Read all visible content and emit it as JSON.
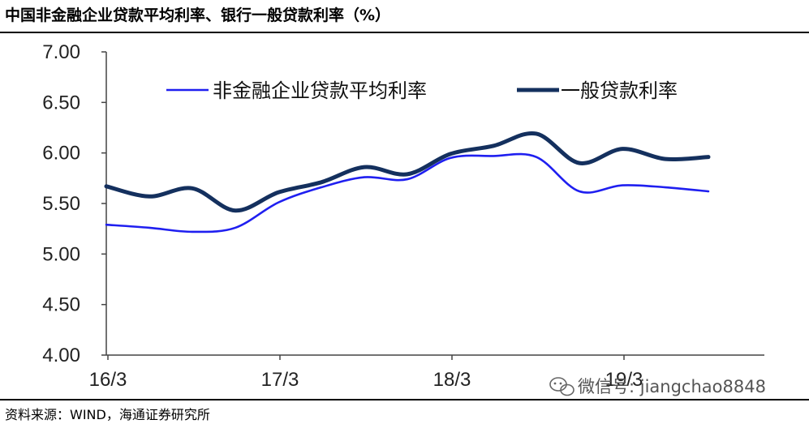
{
  "title": "中国非金融企业贷款平均利率、银行一般贷款利率（%）",
  "source": "资料来源：WIND，海通证券研究所",
  "watermark": "微信号: jiangchao8848",
  "colors": {
    "series_1": "#1f1ff0",
    "series_2": "#14305e",
    "axis": "#444444"
  },
  "chart_data": {
    "type": "line",
    "title": "中国非金融企业贷款平均利率、银行一般贷款利率（%）",
    "xlabel": "",
    "ylabel": "",
    "ylim": [
      4.0,
      7.0
    ],
    "yticks": [
      "7.00",
      "6.50",
      "6.00",
      "5.50",
      "5.00",
      "4.50",
      "4.00"
    ],
    "xticks": [
      "16/3",
      "17/3",
      "18/3",
      "19/3"
    ],
    "x": [
      "16/3",
      "16/6",
      "16/9",
      "16/12",
      "17/3",
      "17/6",
      "17/9",
      "17/12",
      "18/3",
      "18/6",
      "18/9",
      "18/12",
      "19/3",
      "19/6",
      "19/9"
    ],
    "series": [
      {
        "name": "非金融企业贷款平均利率",
        "values": [
          5.29,
          5.26,
          5.22,
          5.26,
          5.51,
          5.66,
          5.76,
          5.74,
          5.95,
          5.97,
          5.96,
          5.62,
          5.68,
          5.66,
          5.62
        ]
      },
      {
        "name": "一般贷款利率",
        "values": [
          5.67,
          5.57,
          5.65,
          5.43,
          5.61,
          5.71,
          5.86,
          5.79,
          5.99,
          6.07,
          6.19,
          5.9,
          6.04,
          5.94,
          5.96
        ]
      }
    ],
    "legend_position": "top",
    "grid": false
  }
}
